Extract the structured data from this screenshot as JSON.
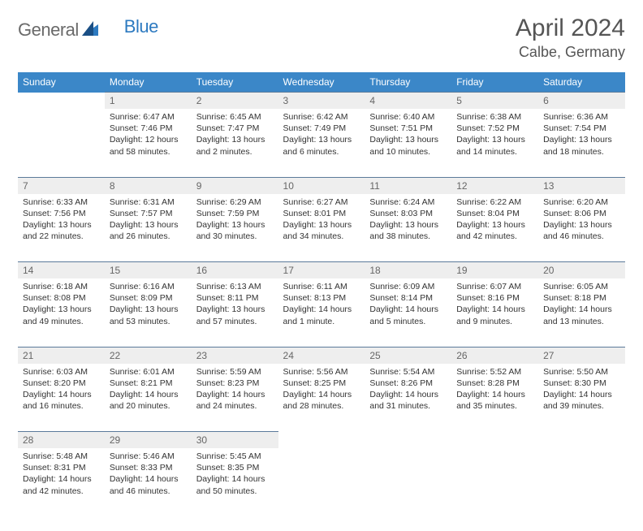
{
  "brand": {
    "part1": "General",
    "part2": "Blue"
  },
  "title": "April 2024",
  "subtitle": "Calbe, Germany",
  "colors": {
    "header_bg": "#3b87c8",
    "header_text": "#ffffff",
    "daynum_bg": "#eeeeee",
    "daynum_text": "#666666",
    "cell_text": "#333333",
    "row_border": "#5b7a9a",
    "brand_grey": "#6a6a6a",
    "brand_blue": "#2d7ac0",
    "page_bg": "#ffffff"
  },
  "weekdays": [
    "Sunday",
    "Monday",
    "Tuesday",
    "Wednesday",
    "Thursday",
    "Friday",
    "Saturday"
  ],
  "weeks": [
    [
      null,
      {
        "n": "1",
        "sr": "6:47 AM",
        "ss": "7:46 PM",
        "dl": "12 hours and 58 minutes."
      },
      {
        "n": "2",
        "sr": "6:45 AM",
        "ss": "7:47 PM",
        "dl": "13 hours and 2 minutes."
      },
      {
        "n": "3",
        "sr": "6:42 AM",
        "ss": "7:49 PM",
        "dl": "13 hours and 6 minutes."
      },
      {
        "n": "4",
        "sr": "6:40 AM",
        "ss": "7:51 PM",
        "dl": "13 hours and 10 minutes."
      },
      {
        "n": "5",
        "sr": "6:38 AM",
        "ss": "7:52 PM",
        "dl": "13 hours and 14 minutes."
      },
      {
        "n": "6",
        "sr": "6:36 AM",
        "ss": "7:54 PM",
        "dl": "13 hours and 18 minutes."
      }
    ],
    [
      {
        "n": "7",
        "sr": "6:33 AM",
        "ss": "7:56 PM",
        "dl": "13 hours and 22 minutes."
      },
      {
        "n": "8",
        "sr": "6:31 AM",
        "ss": "7:57 PM",
        "dl": "13 hours and 26 minutes."
      },
      {
        "n": "9",
        "sr": "6:29 AM",
        "ss": "7:59 PM",
        "dl": "13 hours and 30 minutes."
      },
      {
        "n": "10",
        "sr": "6:27 AM",
        "ss": "8:01 PM",
        "dl": "13 hours and 34 minutes."
      },
      {
        "n": "11",
        "sr": "6:24 AM",
        "ss": "8:03 PM",
        "dl": "13 hours and 38 minutes."
      },
      {
        "n": "12",
        "sr": "6:22 AM",
        "ss": "8:04 PM",
        "dl": "13 hours and 42 minutes."
      },
      {
        "n": "13",
        "sr": "6:20 AM",
        "ss": "8:06 PM",
        "dl": "13 hours and 46 minutes."
      }
    ],
    [
      {
        "n": "14",
        "sr": "6:18 AM",
        "ss": "8:08 PM",
        "dl": "13 hours and 49 minutes."
      },
      {
        "n": "15",
        "sr": "6:16 AM",
        "ss": "8:09 PM",
        "dl": "13 hours and 53 minutes."
      },
      {
        "n": "16",
        "sr": "6:13 AM",
        "ss": "8:11 PM",
        "dl": "13 hours and 57 minutes."
      },
      {
        "n": "17",
        "sr": "6:11 AM",
        "ss": "8:13 PM",
        "dl": "14 hours and 1 minute."
      },
      {
        "n": "18",
        "sr": "6:09 AM",
        "ss": "8:14 PM",
        "dl": "14 hours and 5 minutes."
      },
      {
        "n": "19",
        "sr": "6:07 AM",
        "ss": "8:16 PM",
        "dl": "14 hours and 9 minutes."
      },
      {
        "n": "20",
        "sr": "6:05 AM",
        "ss": "8:18 PM",
        "dl": "14 hours and 13 minutes."
      }
    ],
    [
      {
        "n": "21",
        "sr": "6:03 AM",
        "ss": "8:20 PM",
        "dl": "14 hours and 16 minutes."
      },
      {
        "n": "22",
        "sr": "6:01 AM",
        "ss": "8:21 PM",
        "dl": "14 hours and 20 minutes."
      },
      {
        "n": "23",
        "sr": "5:59 AM",
        "ss": "8:23 PM",
        "dl": "14 hours and 24 minutes."
      },
      {
        "n": "24",
        "sr": "5:56 AM",
        "ss": "8:25 PM",
        "dl": "14 hours and 28 minutes."
      },
      {
        "n": "25",
        "sr": "5:54 AM",
        "ss": "8:26 PM",
        "dl": "14 hours and 31 minutes."
      },
      {
        "n": "26",
        "sr": "5:52 AM",
        "ss": "8:28 PM",
        "dl": "14 hours and 35 minutes."
      },
      {
        "n": "27",
        "sr": "5:50 AM",
        "ss": "8:30 PM",
        "dl": "14 hours and 39 minutes."
      }
    ],
    [
      {
        "n": "28",
        "sr": "5:48 AM",
        "ss": "8:31 PM",
        "dl": "14 hours and 42 minutes."
      },
      {
        "n": "29",
        "sr": "5:46 AM",
        "ss": "8:33 PM",
        "dl": "14 hours and 46 minutes."
      },
      {
        "n": "30",
        "sr": "5:45 AM",
        "ss": "8:35 PM",
        "dl": "14 hours and 50 minutes."
      },
      null,
      null,
      null,
      null
    ]
  ],
  "labels": {
    "sunrise": "Sunrise:",
    "sunset": "Sunset:",
    "daylight": "Daylight:"
  }
}
